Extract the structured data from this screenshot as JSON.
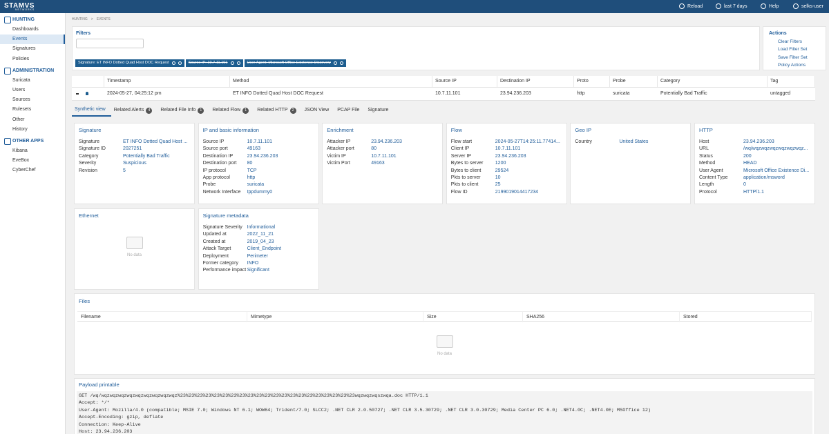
{
  "topbar": {
    "brand": "STAMVS",
    "brand_sub": "NETWORKS",
    "reload": "Reload",
    "period": "last 7 days",
    "help": "Help",
    "user": "selks-user"
  },
  "sidebar": {
    "sections": [
      {
        "title": "HUNTING",
        "items": [
          {
            "label": "Dashboards"
          },
          {
            "label": "Events",
            "active": true
          },
          {
            "label": "Signatures"
          },
          {
            "label": "Policies"
          }
        ]
      },
      {
        "title": "ADMINISTRATION",
        "items": [
          {
            "label": "Suricata"
          },
          {
            "label": "Users"
          },
          {
            "label": "Sources"
          },
          {
            "label": "Rulesets"
          },
          {
            "label": "Other"
          },
          {
            "label": "History"
          }
        ]
      },
      {
        "title": "OTHER APPS",
        "items": [
          {
            "label": "Kibana"
          },
          {
            "label": "EveBox"
          },
          {
            "label": "CyberChef"
          }
        ]
      }
    ]
  },
  "breadcrumb": [
    "HUNTING",
    "EVENTS"
  ],
  "filters": {
    "title": "Filters",
    "chips": [
      {
        "text": "Signature: ET INFO Dotted Quad Host DOC Request"
      },
      {
        "text": "Source IP: 10.7.11.101",
        "disabled": true
      },
      {
        "text": "User Agent: Microsoft Office Existence Discovery",
        "disabled": true
      }
    ]
  },
  "actions": {
    "title": "Actions",
    "items": [
      "Clear Filters",
      "Load Filter Set",
      "Save Filter Set",
      "Policy Actions"
    ]
  },
  "events_table": {
    "columns": [
      "Timestamp",
      "Method",
      "Source IP",
      "Destination IP",
      "Proto",
      "Probe",
      "Category",
      "Tag"
    ],
    "rows": [
      [
        "2024-05-27, 04:25:12 pm",
        "ET INFO Dotted Quad Host DOC Request",
        "10.7.11.101",
        "23.94.236.203",
        "http",
        "suricata",
        "Potentially Bad Traffic",
        "untagged"
      ]
    ]
  },
  "tabs": [
    {
      "label": "Synthetic view"
    },
    {
      "label": "Related Alerts",
      "count": 4
    },
    {
      "label": "Related File Info",
      "count": 1
    },
    {
      "label": "Related Flow",
      "count": 1
    },
    {
      "label": "Related HTTP",
      "count": 2
    },
    {
      "label": "JSON View"
    },
    {
      "label": "PCAP File"
    },
    {
      "label": "Signature"
    }
  ],
  "cards": [
    {
      "title": "Signature",
      "rows": [
        {
          "key": "Signature",
          "value": "ET INFO Dotted Quad Host ..."
        },
        {
          "key": "Signature ID",
          "value": "2027251"
        },
        {
          "key": "Category",
          "value": "Potentially Bad Traffic"
        },
        {
          "key": "Severity",
          "value": "Suspicious"
        },
        {
          "key": "Revision",
          "value": "5"
        }
      ]
    },
    {
      "title": "IP and basic information",
      "rows": [
        {
          "key": "Source IP",
          "value": "10.7.11.101"
        },
        {
          "key": "Source port",
          "value": "49163"
        },
        {
          "key": "Destination IP",
          "value": "23.94.236.203"
        },
        {
          "key": "Destination port",
          "value": "80"
        },
        {
          "key": "IP protocol",
          "value": "TCP"
        },
        {
          "key": "App protocol",
          "value": "http"
        },
        {
          "key": "Probe",
          "value": "suricata"
        },
        {
          "key": "Network Interface",
          "value": "tppdummy0"
        }
      ]
    },
    {
      "title": "Enrichment",
      "rows": [
        {
          "key": "Attacker IP",
          "value": "23.94.236.203"
        },
        {
          "key": "Attacker port",
          "value": "80"
        },
        {
          "key": "Victim IP",
          "value": "10.7.11.101"
        },
        {
          "key": "Victim Port",
          "value": "49163"
        }
      ]
    },
    {
      "title": "Flow",
      "rows": [
        {
          "key": "Flow start",
          "value": "2024-05-27T14:25:11.77414..."
        },
        {
          "key": "Client IP",
          "value": "10.7.11.101"
        },
        {
          "key": "Server IP",
          "value": "23.94.236.203"
        },
        {
          "key": "Bytes to server",
          "value": "1200"
        },
        {
          "key": "Bytes to client",
          "value": "29524"
        },
        {
          "key": "Pkts to server",
          "value": "10"
        },
        {
          "key": "Pkts to client",
          "value": "25"
        },
        {
          "key": "Flow ID",
          "value": "2199019014417234"
        }
      ]
    },
    {
      "title": "Geo IP",
      "rows": [
        {
          "key": "Country",
          "value": "United States"
        }
      ]
    },
    {
      "title": "HTTP",
      "rows": [
        {
          "key": "Host",
          "value": "23.94.236.203"
        },
        {
          "key": "URL",
          "value": "/wq/wqzwqzwqzwqzwqzwqz..."
        },
        {
          "key": "Status",
          "value": "200"
        },
        {
          "key": "Method",
          "value": "HEAD"
        },
        {
          "key": "User Agent",
          "value": "Microsoft Office Existence Di..."
        },
        {
          "key": "Content Type",
          "value": "application/msword"
        },
        {
          "key": "Length",
          "value": "0"
        },
        {
          "key": "Protocol",
          "value": "HTTP/1.1"
        }
      ]
    },
    {
      "title": "Ethernet",
      "empty": "No data"
    },
    {
      "title": "Signature metadata",
      "rows": [
        {
          "key": "Signature Severity",
          "value": "Informational"
        },
        {
          "key": "Updated at",
          "value": "2022_11_21"
        },
        {
          "key": "Created at",
          "value": "2019_04_23"
        },
        {
          "key": "Attack Target",
          "value": "Client_Endpoint"
        },
        {
          "key": "Deployment",
          "value": "Perimeter"
        },
        {
          "key": "Former category",
          "value": "INFO"
        },
        {
          "key": "Performance impact",
          "value": "Significant"
        }
      ]
    }
  ],
  "files": {
    "title": "Files",
    "columns": [
      "Filename",
      "Mimetype",
      "Size",
      "SHA256",
      "Stored"
    ],
    "empty": "No data"
  },
  "payload": {
    "title": "Payload printable",
    "lines": [
      "GET /wq/wqzwqzwqzwqzwqzwqzwqzwqzwqz%23%23%23%23%23%23%23%23%23%23%23%23%23%23%23%23%23%23%23%23%23wqzwqzwqszwqa.doc HTTP/1.1",
      "Accept: */*",
      "User-Agent: Mozilla/4.0 (compatible; MSIE 7.0; Windows NT 6.1; WOW64; Trident/7.0; SLCC2; .NET CLR 2.0.50727; .NET CLR 3.5.30729; .NET CLR 3.0.30729; Media Center PC 6.0; .NET4.0C; .NET4.0E; MSOffice 12)",
      "Accept-Encoding: gzip, deflate",
      "Connection: Keep-Alive",
      "Host: 23.94.236.203"
    ]
  }
}
